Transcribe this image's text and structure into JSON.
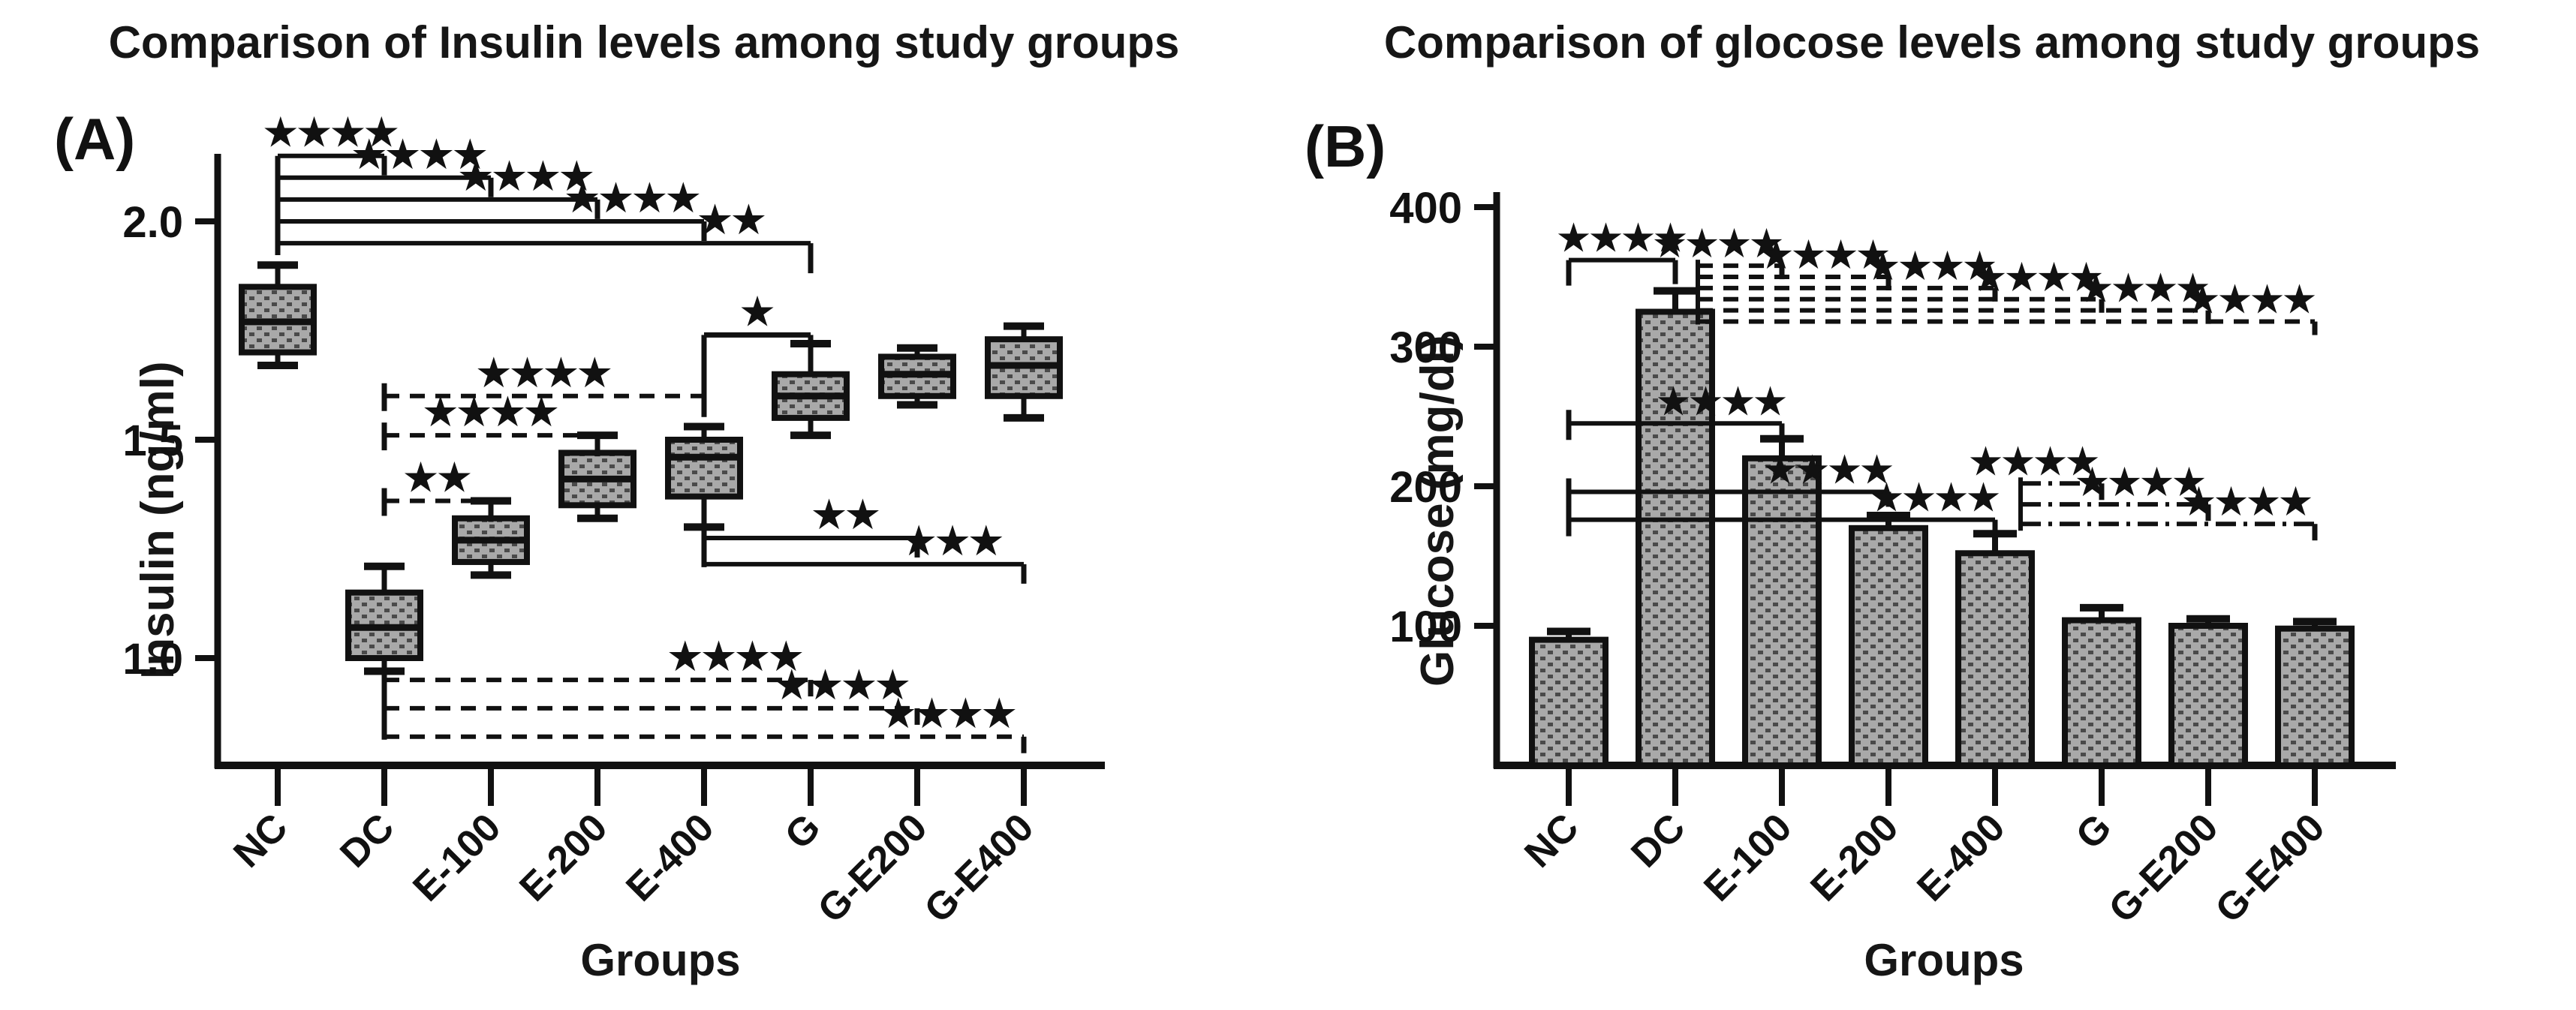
{
  "figure": {
    "panel_a": {
      "label": "(A)",
      "title": "Comparison of Insulin levels among study groups",
      "ylabel": "Insulin (ng/ml)",
      "xlabel": "Groups"
    },
    "panel_b": {
      "label": "(B)",
      "title": "Comparison of glocose levels among study groups",
      "ylabel": "Glucose (mg/dl)",
      "xlabel": "Groups"
    },
    "colors": {
      "ink": "#111111",
      "fill_base": "#a9a9a9",
      "fill_dot": "#4a4a4a",
      "background": "#ffffff"
    }
  },
  "chart_data": [
    {
      "type": "box",
      "panel": "A",
      "title": "Comparison of Insulin levels among study groups",
      "xlabel": "Groups",
      "ylabel": "Insulin (ng/ml)",
      "categories": [
        "NC",
        "DC",
        "E-100",
        "E-200",
        "E-400",
        "G",
        "G-E200",
        "G-E400"
      ],
      "yticks": [
        {
          "v": 2.0,
          "label": "2.0"
        },
        {
          "v": 1.5,
          "label": "1.5"
        },
        {
          "v": 1.0,
          "label": "1.0"
        }
      ],
      "ylim": [
        0.72,
        2.17
      ],
      "grid": false,
      "boxes": [
        {
          "group": "NC",
          "low": 1.67,
          "q1": 1.7,
          "median": 1.77,
          "q3": 1.85,
          "high": 1.9
        },
        {
          "group": "DC",
          "low": 0.97,
          "q1": 1.0,
          "median": 1.07,
          "q3": 1.15,
          "high": 1.21
        },
        {
          "group": "E-100",
          "low": 1.19,
          "q1": 1.22,
          "median": 1.27,
          "q3": 1.32,
          "high": 1.36
        },
        {
          "group": "E-200",
          "low": 1.32,
          "q1": 1.35,
          "median": 1.41,
          "q3": 1.47,
          "high": 1.51
        },
        {
          "group": "E-400",
          "low": 1.3,
          "q1": 1.37,
          "median": 1.46,
          "q3": 1.5,
          "high": 1.53
        },
        {
          "group": "G",
          "low": 1.51,
          "q1": 1.55,
          "median": 1.6,
          "q3": 1.65,
          "high": 1.72
        },
        {
          "group": "G-E200",
          "low": 1.58,
          "q1": 1.6,
          "median": 1.65,
          "q3": 1.69,
          "high": 1.71
        },
        {
          "group": "G-E400",
          "low": 1.55,
          "q1": 1.6,
          "median": 1.67,
          "q3": 1.73,
          "high": 1.76
        }
      ],
      "significance": [
        {
          "from": "NC",
          "to": "DC",
          "label": "****",
          "y": 2.15,
          "style": "solid"
        },
        {
          "from": "NC",
          "to": "E-100",
          "label": "****",
          "y": 2.1,
          "style": "solid"
        },
        {
          "from": "NC",
          "to": "E-200",
          "label": "****",
          "y": 2.05,
          "style": "solid"
        },
        {
          "from": "NC",
          "to": "E-400",
          "label": "****",
          "y": 2.0,
          "style": "solid"
        },
        {
          "from": "NC",
          "to": "G",
          "label": "**",
          "y": 1.95,
          "style": "solid"
        },
        {
          "from": "DC",
          "to": "E-400",
          "label": "****",
          "y": 1.6,
          "style": "dashed"
        },
        {
          "from": "DC",
          "to": "E-200",
          "label": "****",
          "y": 1.51,
          "style": "dashed"
        },
        {
          "from": "DC",
          "to": "E-100",
          "label": "**",
          "y": 1.36,
          "style": "dashed"
        },
        {
          "from": "E-400",
          "to": "G",
          "label": "*",
          "y": 1.74,
          "style": "solid"
        },
        {
          "from": "E-400",
          "to": "G-E200",
          "label": "**",
          "y": 1.275,
          "style": "solid"
        },
        {
          "from": "E-400",
          "to": "G-E400",
          "label": "***",
          "y": 1.215,
          "style": "solid"
        },
        {
          "from": "DC",
          "to": "G",
          "label": "****",
          "y": 0.95,
          "style": "dashed"
        },
        {
          "from": "DC",
          "to": "G-E200",
          "label": "****",
          "y": 0.885,
          "style": "dashed"
        },
        {
          "from": "DC",
          "to": "G-E400",
          "label": "****",
          "y": 0.82,
          "style": "dashed"
        }
      ]
    },
    {
      "type": "bar",
      "panel": "B",
      "title": "Comparison of glocose levels among study groups",
      "xlabel": "Groups",
      "ylabel": "Glucose (mg/dl)",
      "categories": [
        "NC",
        "DC",
        "E-100",
        "E-200",
        "E-400",
        "G",
        "G-E200",
        "G-E400"
      ],
      "yticks": [
        {
          "v": 400,
          "label": "400"
        },
        {
          "v": 300,
          "label": "300"
        },
        {
          "v": 200,
          "label": "200"
        },
        {
          "v": 100,
          "label": "100"
        }
      ],
      "ylim": [
        0,
        400
      ],
      "grid": false,
      "values": [
        90,
        325,
        220,
        170,
        152,
        104,
        100,
        98
      ],
      "errors": [
        6,
        15,
        14,
        9,
        14,
        9,
        5,
        5
      ],
      "significance": [
        {
          "from": "NC",
          "to": "DC",
          "label": "****",
          "y": 362,
          "style": "solid"
        },
        {
          "from": "DC",
          "to": "E-100",
          "label": "****",
          "y": 358,
          "style": "dashed"
        },
        {
          "from": "DC",
          "to": "E-200",
          "label": "****",
          "y": 350,
          "style": "dashed"
        },
        {
          "from": "DC",
          "to": "E-400",
          "label": "****",
          "y": 342,
          "style": "dashed"
        },
        {
          "from": "DC",
          "to": "G",
          "label": "****",
          "y": 334,
          "style": "dashed"
        },
        {
          "from": "DC",
          "to": "G-E200",
          "label": "****",
          "y": 326,
          "style": "dashed"
        },
        {
          "from": "DC",
          "to": "G-E400",
          "label": "****",
          "y": 318,
          "style": "dashed"
        },
        {
          "from": "NC",
          "to": "E-100",
          "label": "****",
          "y": 245,
          "style": "solid"
        },
        {
          "from": "NC",
          "to": "E-200",
          "label": "****",
          "y": 196,
          "style": "solid"
        },
        {
          "from": "NC",
          "to": "E-400",
          "label": "****",
          "y": 176,
          "style": "solid"
        },
        {
          "from": "E-400",
          "to": "G",
          "label": "****",
          "y": 202,
          "style": "dashdot"
        },
        {
          "from": "E-400",
          "to": "G-E200",
          "label": "****",
          "y": 187,
          "style": "dashdot"
        },
        {
          "from": "E-400",
          "to": "G-E400",
          "label": "****",
          "y": 173,
          "style": "dashdot"
        }
      ]
    }
  ]
}
